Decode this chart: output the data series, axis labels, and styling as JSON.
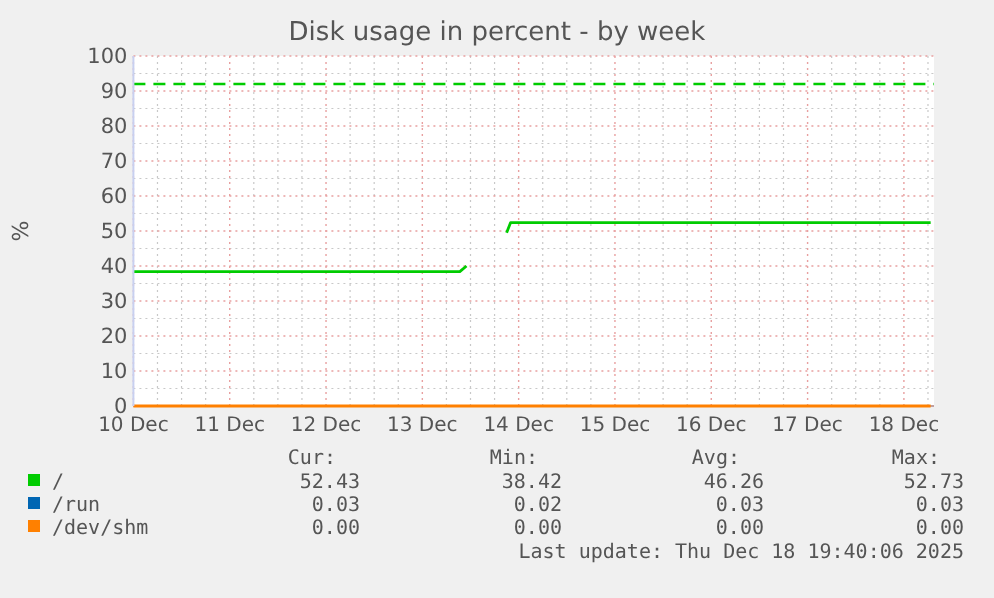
{
  "chart_data": {
    "type": "line",
    "title": "Disk usage in percent - by week",
    "ylabel": "%",
    "xlim": [
      "2025-12-10T00:00",
      "2025-12-18T07:30"
    ],
    "xticks": [
      {
        "value": "2025-12-10",
        "label": "10 Dec"
      },
      {
        "value": "2025-12-11",
        "label": "11 Dec"
      },
      {
        "value": "2025-12-12",
        "label": "12 Dec"
      },
      {
        "value": "2025-12-13",
        "label": "13 Dec"
      },
      {
        "value": "2025-12-14",
        "label": "14 Dec"
      },
      {
        "value": "2025-12-15",
        "label": "15 Dec"
      },
      {
        "value": "2025-12-16",
        "label": "16 Dec"
      },
      {
        "value": "2025-12-17",
        "label": "17 Dec"
      },
      {
        "value": "2025-12-18",
        "label": "18 Dec"
      }
    ],
    "ylim": [
      0,
      100
    ],
    "yticks": [
      0,
      10,
      20,
      30,
      40,
      50,
      60,
      70,
      80,
      90,
      100
    ],
    "grid": true,
    "legend": "bottom",
    "line_style": "solid",
    "series": [
      {
        "name": "/",
        "color": "#00cc00",
        "x": [
          "2025-12-10T00:00",
          "2025-12-13T09:20",
          "2025-12-13T11:00",
          "2025-12-13T16:00",
          "2025-12-13T21:00",
          "2025-12-13T22:00",
          "2025-12-18T06:40"
        ],
        "values": [
          38.4,
          38.4,
          40,
          null,
          49.5,
          52.4,
          52.4
        ]
      },
      {
        "name": "/run",
        "color": "#0066b3"
      },
      {
        "name": "/dev/shm",
        "color": "#ff8000",
        "x": [
          "2025-12-10T00:00",
          "2025-12-18T06:40"
        ],
        "values": [
          0,
          0
        ]
      }
    ],
    "ref_lines": [
      {
        "axis": "y",
        "value": 92,
        "color": "#00cc00",
        "line_style": "dashed"
      }
    ],
    "annotations": [
      "Cur:",
      "Min:",
      "Avg:",
      "Max:",
      "52.43",
      "38.42",
      "46.26",
      "52.73",
      "0.03",
      "0.02",
      "0.03",
      "0.03",
      "0.00",
      "0.00",
      "0.00",
      "0.00",
      "Last update: Thu Dec 18 19:40:06 2025"
    ]
  }
}
